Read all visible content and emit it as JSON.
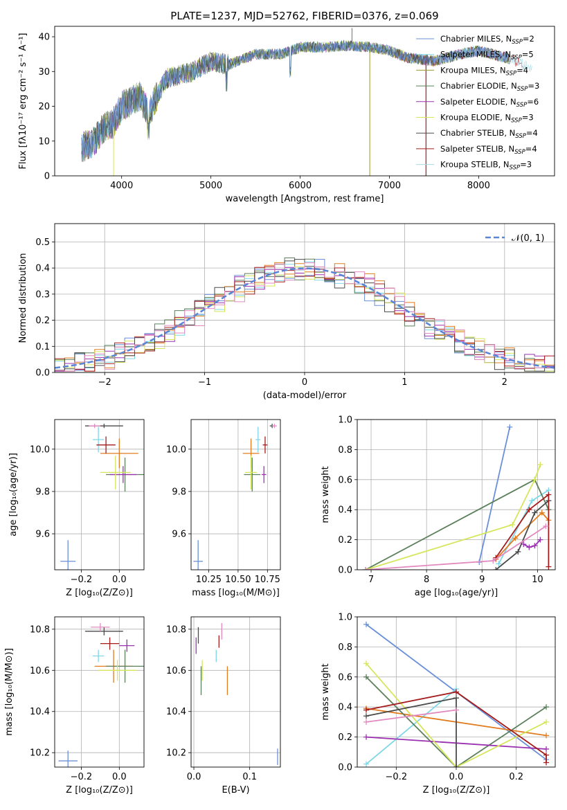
{
  "figure": {
    "title": "PLATE=1237, MJD=52762, FIBERID=0376, z=0.069"
  },
  "colors": {
    "chabrier_miles": "#6a8fd8",
    "salpeter_miles": "#7fd6e6",
    "kroupa_miles": "#e07b1e",
    "chabrier_elodie": "#5a7f5a",
    "salpeter_elodie": "#9a30b0",
    "kroupa_elodie": "#d6e65a",
    "chabrier_stelib": "#4a4a4a",
    "salpeter_stelib": "#a51b1b",
    "kroupa_stelib": "#e28ac0"
  },
  "chart_data": [
    {
      "id": "spectrum",
      "type": "line",
      "title": "PLATE=1237, MJD=52762, FIBERID=0376, z=0.069",
      "xlabel": "wavelength [Angstrom, rest frame]",
      "ylabel": "Flux [fλ10⁻¹⁷ erg cm⁻² s⁻¹ A⁻¹]",
      "xlim": [
        3250,
        8850
      ],
      "ylim": [
        0,
        43
      ],
      "xticks": [
        "4000",
        "5000",
        "6000",
        "7000",
        "8000"
      ],
      "yticks": [
        "0",
        "10",
        "20",
        "30",
        "40"
      ],
      "legend_position": "upper right",
      "continuum": {
        "x": [
          3550,
          3700,
          3800,
          3900,
          4000,
          4200,
          4300,
          4500,
          4800,
          5000,
          5200,
          5500,
          5800,
          6000,
          6300,
          6500,
          6800,
          7000,
          7200,
          7500,
          7800,
          8000,
          8300,
          8600
        ],
        "y": [
          8,
          10,
          14,
          15,
          20,
          23,
          18,
          28,
          30,
          33,
          32,
          35,
          35,
          37,
          37,
          37.5,
          37,
          36,
          34,
          33,
          35,
          36,
          34,
          31
        ]
      },
      "legend": [
        {
          "main": "Chabrier MILES, N",
          "sub": "SSP",
          "tail": "=2",
          "color": "#6a8fd8"
        },
        {
          "main": "Salpeter MILES, N",
          "sub": "SSP",
          "tail": "=5",
          "color": "#7fd6e6"
        },
        {
          "main": "Kroupa MILES, N",
          "sub": "SSP",
          "tail": "=4",
          "color": "#9a9a2a"
        },
        {
          "main": "Chabrier ELODIE, N",
          "sub": "SSP",
          "tail": "=3",
          "color": "#5a7f5a"
        },
        {
          "main": "Salpeter ELODIE, N",
          "sub": "SSP",
          "tail": "=6",
          "color": "#9a30b0"
        },
        {
          "main": "Kroupa ELODIE, N",
          "sub": "SSP",
          "tail": "=3",
          "color": "#d6e65a"
        },
        {
          "main": "Chabrier STELIB, N",
          "sub": "SSP",
          "tail": "=4",
          "color": "#4a4a4a"
        },
        {
          "main": "Salpeter STELIB, N",
          "sub": "SSP",
          "tail": "=4",
          "color": "#a51b1b"
        },
        {
          "main": "Kroupa STELIB, N",
          "sub": "SSP",
          "tail": "=3",
          "color": "#a8dce8"
        }
      ]
    },
    {
      "id": "residuals",
      "type": "histogram",
      "xlabel": "(data-model)/error",
      "ylabel": "Normed distribution",
      "xlim": [
        -2.5,
        2.5
      ],
      "ylim": [
        0,
        0.57
      ],
      "xticks": [
        "−2",
        "−1",
        "0",
        "1",
        "2"
      ],
      "yticks": [
        "0.0",
        "0.1",
        "0.2",
        "0.3",
        "0.4",
        "0.5"
      ],
      "grid": true,
      "legend_position": "upper right",
      "gaussian_label": "𝒩(0, 1)",
      "gaussian_mean": 0,
      "gaussian_sigma": 1,
      "bin_width": 0.1
    },
    {
      "id": "age_vs_Z",
      "type": "errorbar",
      "xlabel": "Z [log₁₀(Z/Z⊙)]",
      "ylabel": "age  [log₁₀(age/yr)]",
      "xlim": [
        -0.34,
        0.13
      ],
      "ylim": [
        9.43,
        10.14
      ],
      "xticks": [
        "−0.2",
        "0.0"
      ],
      "xtick_values": [
        -0.2,
        0.0
      ],
      "yticks": [
        "9.6",
        "9.8",
        "10.0"
      ],
      "ytick_values": [
        9.6,
        9.8,
        10.0
      ],
      "grid": true,
      "points": [
        {
          "x": -0.27,
          "y": 9.47,
          "xerr": 0.04,
          "yerr": 0.1,
          "color": "#6a8fd8"
        },
        {
          "x": -0.11,
          "y": 10.045,
          "xerr": 0.03,
          "yerr": 0.06,
          "color": "#7fd6e6"
        },
        {
          "x": 0.0,
          "y": 9.98,
          "xerr": 0.1,
          "yerr": 0.07,
          "color": "#e07b1e"
        },
        {
          "x": 0.03,
          "y": 9.88,
          "xerr": 0.1,
          "yerr": 0.08,
          "color": "#5a7f5a"
        },
        {
          "x": 0.02,
          "y": 9.88,
          "xerr": 0.07,
          "yerr": 0.04,
          "color": "#9a30b0"
        },
        {
          "x": -0.02,
          "y": 9.89,
          "xerr": 0.08,
          "yerr": 0.08,
          "color": "#d6e65a"
        },
        {
          "x": -0.08,
          "y": 10.11,
          "xerr": 0.1,
          "yerr": 0.01,
          "color": "#4a4a4a"
        },
        {
          "x": -0.07,
          "y": 10.02,
          "xerr": 0.05,
          "yerr": 0.04,
          "color": "#a51b1b"
        },
        {
          "x": -0.13,
          "y": 10.11,
          "xerr": 0.03,
          "yerr": 0.01,
          "color": "#e28ac0"
        }
      ]
    },
    {
      "id": "age_vs_mass",
      "type": "errorbar",
      "xlabel": "mass [log₁₀(M/M⊙)]",
      "xlim": [
        10.1,
        10.86
      ],
      "ylim": [
        9.43,
        10.14
      ],
      "xticks": [
        "10.25",
        "10.50",
        "10.75"
      ],
      "xtick_values": [
        10.25,
        10.5,
        10.75
      ],
      "yticks": [
        "9.6",
        "9.8",
        "10.0"
      ],
      "ytick_values": [
        9.6,
        9.8,
        10.0
      ],
      "grid": true,
      "points": [
        {
          "x": 10.16,
          "y": 9.47,
          "xerr": 0.04,
          "yerr": 0.1,
          "color": "#6a8fd8"
        },
        {
          "x": 10.67,
          "y": 10.045,
          "xerr": 0.02,
          "yerr": 0.06,
          "color": "#7fd6e6"
        },
        {
          "x": 10.61,
          "y": 9.98,
          "xerr": 0.07,
          "yerr": 0.07,
          "color": "#e07b1e"
        },
        {
          "x": 10.62,
          "y": 9.88,
          "xerr": 0.07,
          "yerr": 0.08,
          "color": "#5a7f5a"
        },
        {
          "x": 10.72,
          "y": 9.88,
          "xerr": 0.02,
          "yerr": 0.04,
          "color": "#9a30b0"
        },
        {
          "x": 10.61,
          "y": 9.89,
          "xerr": 0.05,
          "yerr": 0.08,
          "color": "#d6e65a"
        },
        {
          "x": 10.79,
          "y": 10.11,
          "xerr": 0.02,
          "yerr": 0.01,
          "color": "#4a4a4a"
        },
        {
          "x": 10.73,
          "y": 10.02,
          "xerr": 0.02,
          "yerr": 0.04,
          "color": "#a51b1b"
        },
        {
          "x": 10.81,
          "y": 10.11,
          "xerr": 0.02,
          "yerr": 0.01,
          "color": "#e28ac0"
        }
      ]
    },
    {
      "id": "weight_vs_age",
      "type": "line",
      "xlabel": "age  [log₁₀(age/yr)]",
      "ylabel": "mass weight",
      "xlim": [
        6.75,
        10.32
      ],
      "ylim": [
        0,
        1
      ],
      "xticks": [
        "7",
        "8",
        "9",
        "10"
      ],
      "xtick_values": [
        7,
        8,
        9,
        10
      ],
      "yticks": [
        "0.0",
        "0.2",
        "0.4",
        "0.6",
        "0.8",
        "1.0"
      ],
      "ytick_values": [
        0,
        0.2,
        0.4,
        0.6,
        0.8,
        1.0
      ],
      "grid": true,
      "series": [
        {
          "color": "#6a8fd8",
          "x": [
            8.95,
            9.5
          ],
          "y": [
            0.05,
            0.95
          ]
        },
        {
          "color": "#7fd6e6",
          "x": [
            9.3,
            9.9,
            10.2
          ],
          "y": [
            0.04,
            0.46,
            0.53
          ]
        },
        {
          "color": "#e07b1e",
          "x": [
            9.25,
            9.6,
            10.08,
            10.2
          ],
          "y": [
            0.07,
            0.21,
            0.38,
            0.33
          ]
        },
        {
          "color": "#5a7f5a",
          "x": [
            6.9,
            9.95,
            10.2
          ],
          "y": [
            0.0,
            0.6,
            0.4
          ]
        },
        {
          "color": "#9a30b0",
          "x": [
            9.75,
            9.85,
            9.95,
            10.05
          ],
          "y": [
            0.17,
            0.15,
            0.16,
            0.2
          ]
        },
        {
          "color": "#d6e65a",
          "x": [
            6.9,
            9.55,
            9.95,
            10.05
          ],
          "y": [
            0.0,
            0.3,
            0.6,
            0.7
          ]
        },
        {
          "color": "#4a4a4a",
          "x": [
            9.25,
            9.65,
            9.95,
            10.2
          ],
          "y": [
            0.0,
            0.12,
            0.38,
            0.46
          ]
        },
        {
          "color": "#a51b1b",
          "x": [
            9.25,
            9.85,
            10.2,
            10.2
          ],
          "y": [
            0.08,
            0.4,
            0.5,
            0.02
          ]
        },
        {
          "color": "#e28ac0",
          "x": [
            6.9,
            9.2,
            10.15
          ],
          "y": [
            0.0,
            0.06,
            0.29
          ]
        }
      ]
    },
    {
      "id": "mass_vs_Z",
      "type": "errorbar",
      "xlabel": "Z [log₁₀(Z/Z⊙)]",
      "ylabel": "mass [log₁₀(M/M⊙)]",
      "xlim": [
        -0.34,
        0.13
      ],
      "ylim": [
        10.13,
        10.86
      ],
      "xticks": [
        "−0.2",
        "0.0"
      ],
      "xtick_values": [
        -0.2,
        0.0
      ],
      "yticks": [
        "10.2",
        "10.4",
        "10.6",
        "10.8"
      ],
      "ytick_values": [
        10.2,
        10.4,
        10.6,
        10.8
      ],
      "grid": true,
      "points": [
        {
          "x": -0.27,
          "y": 10.16,
          "xerr": 0.05,
          "yerr": 0.05,
          "color": "#6a8fd8"
        },
        {
          "x": -0.11,
          "y": 10.67,
          "xerr": 0.03,
          "yerr": 0.03,
          "color": "#7fd6e6"
        },
        {
          "x": -0.03,
          "y": 10.62,
          "xerr": 0.1,
          "yerr": 0.08,
          "color": "#e07b1e"
        },
        {
          "x": 0.03,
          "y": 10.62,
          "xerr": 0.1,
          "yerr": 0.08,
          "color": "#5a7f5a"
        },
        {
          "x": 0.04,
          "y": 10.72,
          "xerr": 0.04,
          "yerr": 0.03,
          "color": "#9a30b0"
        },
        {
          "x": -0.01,
          "y": 10.6,
          "xerr": 0.1,
          "yerr": 0.05,
          "color": "#d6e65a"
        },
        {
          "x": -0.08,
          "y": 10.79,
          "xerr": 0.1,
          "yerr": 0.02,
          "color": "#4a4a4a"
        },
        {
          "x": -0.05,
          "y": 10.73,
          "xerr": 0.05,
          "yerr": 0.03,
          "color": "#a51b1b"
        },
        {
          "x": -0.1,
          "y": 10.81,
          "xerr": 0.05,
          "yerr": 0.02,
          "color": "#e28ac0"
        }
      ]
    },
    {
      "id": "mass_vs_ebv",
      "type": "errorbar",
      "xlabel": "E(B-V)",
      "xlim": [
        -0.005,
        0.155
      ],
      "ylim": [
        10.13,
        10.86
      ],
      "xticks": [
        "0.0",
        "0.1"
      ],
      "xtick_values": [
        0.0,
        0.1
      ],
      "yticks": [
        "10.2",
        "10.4",
        "10.6",
        "10.8"
      ],
      "ytick_values": [
        10.2,
        10.4,
        10.6,
        10.8
      ],
      "grid": true,
      "points": [
        {
          "x": 0.15,
          "y": 10.18,
          "xerr": 0,
          "yerr": 0.04,
          "color": "#6a8fd8"
        },
        {
          "x": 0.04,
          "y": 10.67,
          "xerr": 0,
          "yerr": 0.03,
          "color": "#7fd6e6"
        },
        {
          "x": 0.06,
          "y": 10.55,
          "xerr": 0,
          "yerr": 0.07,
          "color": "#e07b1e"
        },
        {
          "x": 0.013,
          "y": 10.55,
          "xerr": 0,
          "yerr": 0.07,
          "color": "#5a7f5a"
        },
        {
          "x": 0.004,
          "y": 10.72,
          "xerr": 0,
          "yerr": 0.04,
          "color": "#9a30b0"
        },
        {
          "x": 0.015,
          "y": 10.6,
          "xerr": 0,
          "yerr": 0.05,
          "color": "#d6e65a"
        },
        {
          "x": 0.008,
          "y": 10.77,
          "xerr": 0,
          "yerr": 0.04,
          "color": "#4a4a4a"
        },
        {
          "x": 0.045,
          "y": 10.74,
          "xerr": 0,
          "yerr": 0.03,
          "color": "#a51b1b"
        },
        {
          "x": 0.05,
          "y": 10.79,
          "xerr": 0,
          "yerr": 0.04,
          "color": "#e28ac0"
        }
      ]
    },
    {
      "id": "weight_vs_Z",
      "type": "line",
      "xlabel": "Z [log₁₀(Z/Z⊙)]",
      "ylabel": "mass weight",
      "xlim": [
        -0.33,
        0.33
      ],
      "ylim": [
        0,
        1
      ],
      "xticks": [
        "−0.2",
        "0.0",
        "0.2"
      ],
      "xtick_values": [
        -0.2,
        0.0,
        0.2
      ],
      "yticks": [
        "0.0",
        "0.2",
        "0.4",
        "0.6",
        "0.8",
        "1.0"
      ],
      "ytick_values": [
        0,
        0.2,
        0.4,
        0.6,
        0.8,
        1.0
      ],
      "grid": true,
      "series": [
        {
          "color": "#6a8fd8",
          "x": [
            -0.3,
            0.0,
            0.3
          ],
          "y": [
            0.95,
            0.5,
            0.05
          ]
        },
        {
          "color": "#7fd6e6",
          "x": [
            -0.3,
            0.0
          ],
          "y": [
            0.02,
            0.52
          ]
        },
        {
          "color": "#e07b1e",
          "x": [
            -0.3,
            0.3
          ],
          "y": [
            0.39,
            0.21
          ]
        },
        {
          "color": "#5a7f5a",
          "x": [
            -0.3,
            0.0,
            0.3
          ],
          "y": [
            0.6,
            0.0,
            0.4
          ]
        },
        {
          "color": "#9a30b0",
          "x": [
            -0.3,
            0.0,
            0.3
          ],
          "y": [
            0.2,
            0.16,
            0.12
          ]
        },
        {
          "color": "#d6e65a",
          "x": [
            -0.3,
            0.0,
            0.3
          ],
          "y": [
            0.69,
            0.0,
            0.3
          ]
        },
        {
          "color": "#4a4a4a",
          "x": [
            -0.3,
            0.0,
            0.0
          ],
          "y": [
            0.34,
            0.46,
            0.0
          ]
        },
        {
          "color": "#a51b1b",
          "x": [
            -0.3,
            0.0,
            0.3,
            0.3
          ],
          "y": [
            0.38,
            0.5,
            0.08,
            0.03
          ]
        },
        {
          "color": "#e28ac0",
          "x": [
            -0.3,
            0.0
          ],
          "y": [
            0.3,
            0.38
          ]
        }
      ]
    }
  ]
}
